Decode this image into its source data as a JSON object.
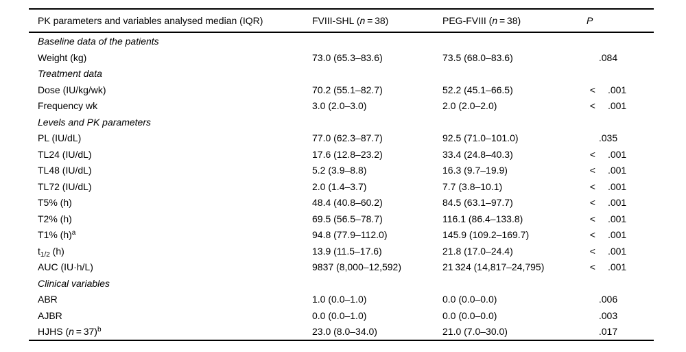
{
  "page": {
    "background": "#ffffff",
    "text_color": "#000000"
  },
  "table": {
    "header": {
      "col1": "PK parameters and variables analysed median (IQR)",
      "col2_pre": "FVIII-SHL (",
      "col2_n": "n",
      "col2_post": " = 38)",
      "col3_pre": "PEG-FVIII (",
      "col3_n": "n",
      "col3_post": " = 38)",
      "col4": "P"
    },
    "rows": [
      {
        "type": "section",
        "label": "Baseline data of the patients"
      },
      {
        "type": "data",
        "label": "Weight (kg)",
        "shl": "73.0 (65.3–83.6)",
        "peg": "73.5 (68.0–83.6)",
        "p_val": ".084"
      },
      {
        "type": "section",
        "label": "Treatment data"
      },
      {
        "type": "data",
        "label": "Dose (IU/kg/wk)",
        "shl": "70.2 (55.1–82.7)",
        "peg": "52.2 (45.1–66.5)",
        "p_lt": "<",
        "p_val": ".001"
      },
      {
        "type": "data",
        "label": "Frequency wk",
        "shl": "3.0 (2.0–3.0)",
        "peg": "2.0 (2.0–2.0)",
        "p_lt": "<",
        "p_val": ".001"
      },
      {
        "type": "section",
        "label": "Levels and PK parameters"
      },
      {
        "type": "data",
        "label": "PL (IU/dL)",
        "shl": "77.0 (62.3–87.7)",
        "peg": "92.5 (71.0–101.0)",
        "p_val": ".035"
      },
      {
        "type": "data",
        "label": "TL24 (IU/dL)",
        "shl": "17.6 (12.8–23.2)",
        "peg": "33.4 (24.8–40.3)",
        "p_lt": "<",
        "p_val": ".001"
      },
      {
        "type": "data",
        "label": "TL48 (IU/dL)",
        "shl": "5.2 (3.9–8.8)",
        "peg": "16.3 (9.7–19.9)",
        "p_lt": "<",
        "p_val": ".001"
      },
      {
        "type": "data",
        "label": "TL72 (IU/dL)",
        "shl": "2.0 (1.4–3.7)",
        "peg": "7.7 (3.8–10.1)",
        "p_lt": "<",
        "p_val": ".001"
      },
      {
        "type": "data",
        "label": "T5% (h)",
        "shl": "48.4 (40.8–60.2)",
        "peg": "84.5 (63.1–97.7)",
        "p_lt": "<",
        "p_val": ".001"
      },
      {
        "type": "data",
        "label": "T2% (h)",
        "shl": "69.5 (56.5–78.7)",
        "peg": "116.1 (86.4–133.8)",
        "p_lt": "<",
        "p_val": ".001"
      },
      {
        "type": "data",
        "label": "T1% (h)",
        "label_sup": "a",
        "shl": "94.8 (77.9–112.0)",
        "peg": "145.9 (109.2–169.7)",
        "p_lt": "<",
        "p_val": ".001"
      },
      {
        "type": "data",
        "label_pre": "t",
        "label_sub": "1/2",
        "label_post": " (h)",
        "shl": "13.9 (11.5–17.6)",
        "peg": "21.8 (17.0–24.4)",
        "p_lt": "<",
        "p_val": ".001"
      },
      {
        "type": "data",
        "label": "AUC (IU·h/L)",
        "shl": "9837 (8,000–12,592)",
        "peg": "21 324 (14,817–24,795)",
        "p_lt": "<",
        "p_val": ".001"
      },
      {
        "type": "section",
        "label": "Clinical variables"
      },
      {
        "type": "data",
        "label": "ABR",
        "shl": "1.0 (0.0–1.0)",
        "peg": "0.0 (0.0–0.0)",
        "p_val": ".006"
      },
      {
        "type": "data",
        "label": "AJBR",
        "shl": "0.0 (0.0–1.0)",
        "peg": "0.0 (0.0–0.0)",
        "p_val": ".003"
      },
      {
        "type": "data",
        "label_pre": "HJHS (",
        "label_n": "n",
        "label_post": " = 37)",
        "label_sup": "b",
        "shl": "23.0 (8.0–34.0)",
        "peg": "21.0 (7.0–30.0)",
        "p_val": ".017"
      }
    ]
  }
}
